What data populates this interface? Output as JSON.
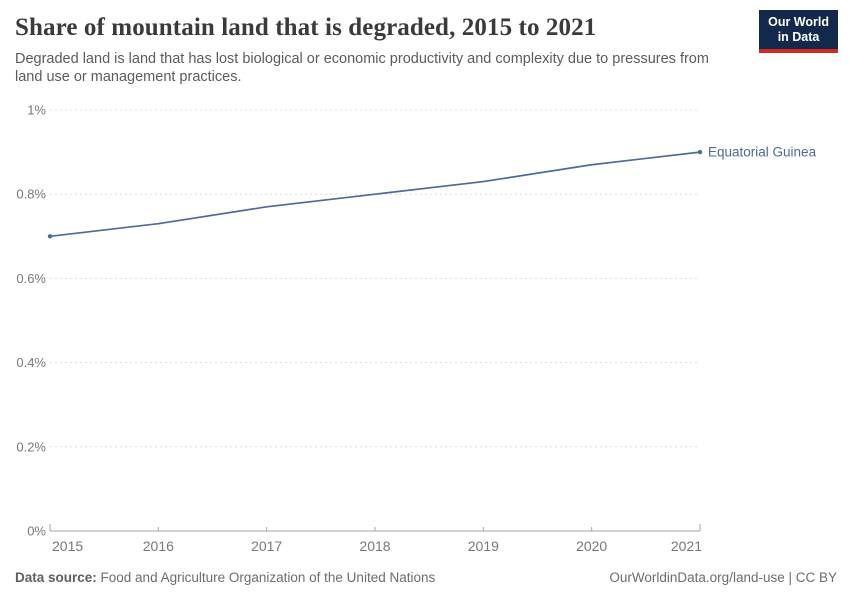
{
  "header": {
    "title": "Share of mountain land that is degraded, 2015 to 2021",
    "subtitle": "Degraded land is land that has lost biological or economic productivity and complexity due to pressures from land use or management practices."
  },
  "logo": {
    "line1": "Our World",
    "line2": "in Data",
    "bg_color": "#12294b",
    "accent_color": "#d02a20"
  },
  "chart_data": {
    "type": "line",
    "title": "Share of mountain land that is degraded, 2015 to 2021",
    "x": [
      2015,
      2016,
      2017,
      2018,
      2019,
      2020,
      2021
    ],
    "xtick_labels": [
      "2015",
      "2016",
      "2017",
      "2018",
      "2019",
      "2020",
      "2021"
    ],
    "series": [
      {
        "name": "Equatorial Guinea",
        "values": [
          0.7,
          0.73,
          0.77,
          0.8,
          0.83,
          0.87,
          0.9
        ],
        "color": "#4C6A9C",
        "start_marker": true,
        "end_marker": true
      }
    ],
    "xlabel": "",
    "ylabel": "",
    "ylim": [
      0,
      1
    ],
    "yticks": [
      0,
      0.2,
      0.4,
      0.6,
      0.8,
      1
    ],
    "ytick_labels": [
      "0%",
      "0.2%",
      "0.4%",
      "0.6%",
      "0.8%",
      "1%"
    ],
    "unit": "%",
    "grid": "horizontal-dashed",
    "legend_position": "line-end-label",
    "axis_color": "#a6a6a6",
    "grid_color": "#dcdcdc",
    "tick_label_color": "#787878"
  },
  "footer": {
    "source_label": "Data source:",
    "source_text": " Food and Agriculture Organization of the United Nations",
    "link_text": "OurWorldinData.org/land-use | CC BY"
  }
}
